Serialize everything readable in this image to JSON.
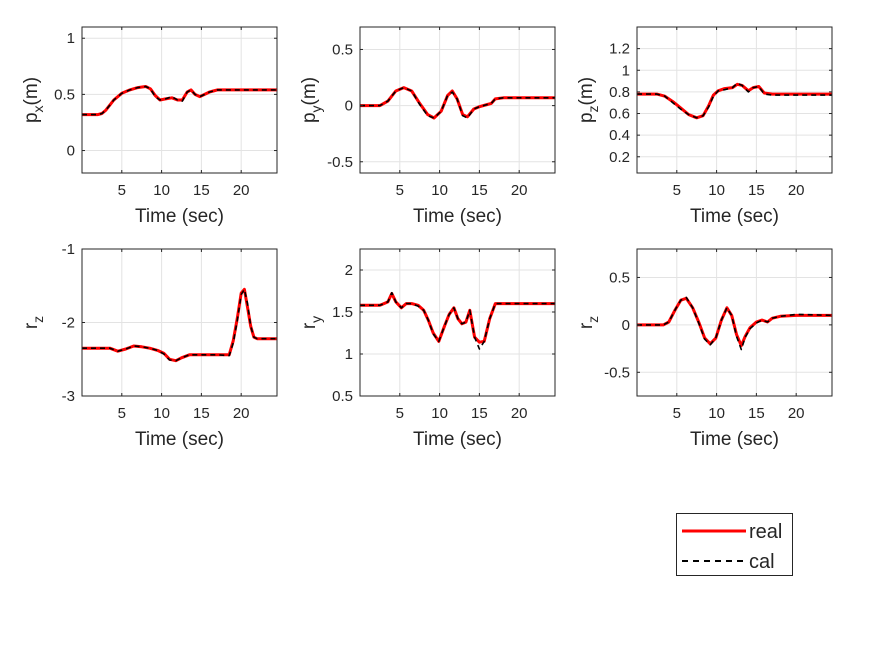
{
  "chart_data": [
    {
      "type": "line",
      "ylabel_base": "p",
      "ylabel_sub": "x",
      "ylabel_suffix": "(m)",
      "xlabel": "Time (sec)",
      "xlim": [
        0,
        24.5
      ],
      "ylim": [
        -0.2,
        1.1
      ],
      "xticks": [
        5,
        10,
        15,
        20
      ],
      "yticks": [
        0,
        0.5,
        1
      ],
      "ytick_labels": [
        "0",
        "0.5",
        "1"
      ],
      "series": [
        {
          "name": "real",
          "x": [
            0,
            2,
            2.5,
            3,
            4,
            5,
            6,
            7,
            8,
            8.6,
            9.2,
            9.8,
            10.5,
            11.3,
            12,
            12.6,
            13.2,
            13.7,
            14.2,
            14.8,
            15.4,
            16,
            16.5,
            17,
            20,
            24.5
          ],
          "y": [
            0.32,
            0.32,
            0.33,
            0.36,
            0.45,
            0.51,
            0.54,
            0.56,
            0.57,
            0.55,
            0.49,
            0.45,
            0.46,
            0.47,
            0.45,
            0.45,
            0.52,
            0.54,
            0.5,
            0.48,
            0.5,
            0.52,
            0.53,
            0.54,
            0.54,
            0.54
          ]
        },
        {
          "name": "cal",
          "x": [
            0,
            2,
            2.5,
            3,
            4,
            5,
            6,
            7,
            8,
            8.6,
            9.2,
            9.8,
            10.5,
            11.3,
            12,
            12.6,
            13.2,
            13.7,
            14.2,
            14.8,
            15.4,
            16,
            16.5,
            17,
            20,
            24.5
          ],
          "y": [
            0.32,
            0.32,
            0.33,
            0.36,
            0.45,
            0.51,
            0.54,
            0.56,
            0.57,
            0.55,
            0.48,
            0.45,
            0.46,
            0.48,
            0.45,
            0.44,
            0.52,
            0.54,
            0.5,
            0.48,
            0.5,
            0.52,
            0.53,
            0.54,
            0.54,
            0.54
          ]
        }
      ]
    },
    {
      "type": "line",
      "ylabel_base": "p",
      "ylabel_sub": "y",
      "ylabel_suffix": "(m)",
      "xlabel": "Time (sec)",
      "xlim": [
        0,
        24.5
      ],
      "ylim": [
        -0.6,
        0.7
      ],
      "xticks": [
        5,
        10,
        15,
        20
      ],
      "yticks": [
        -0.5,
        0,
        0.5
      ],
      "ytick_labels": [
        "-0.5",
        "0",
        "0.5"
      ],
      "series": [
        {
          "name": "real",
          "x": [
            0,
            2.5,
            3.5,
            4.5,
            5.5,
            6.5,
            7.5,
            8.5,
            9.3,
            10.2,
            11,
            11.6,
            12.2,
            12.9,
            13.5,
            14.3,
            15,
            16,
            16.5,
            17,
            18,
            24.5
          ],
          "y": [
            0,
            0,
            0.04,
            0.13,
            0.16,
            0.13,
            0.02,
            -0.08,
            -0.11,
            -0.05,
            0.09,
            0.13,
            0.06,
            -0.08,
            -0.1,
            -0.03,
            -0.01,
            0.01,
            0.02,
            0.06,
            0.07,
            0.07
          ]
        },
        {
          "name": "cal",
          "x": [
            0,
            2.5,
            3.5,
            4.5,
            5.5,
            6.5,
            7.5,
            8.5,
            9.3,
            10.2,
            11,
            11.6,
            12.2,
            12.9,
            13.5,
            14.3,
            15,
            16,
            16.5,
            17,
            18,
            24.5
          ],
          "y": [
            0,
            0,
            0.04,
            0.13,
            0.16,
            0.13,
            0.01,
            -0.09,
            -0.11,
            -0.05,
            0.09,
            0.12,
            0.06,
            -0.09,
            -0.11,
            -0.03,
            -0.01,
            0.01,
            0.02,
            0.06,
            0.07,
            0.07
          ]
        }
      ]
    },
    {
      "type": "line",
      "ylabel_base": "p",
      "ylabel_sub": "z",
      "ylabel_suffix": "(m)",
      "xlabel": "Time (sec)",
      "xlim": [
        0,
        24.5
      ],
      "ylim": [
        0.05,
        1.4
      ],
      "xticks": [
        5,
        10,
        15,
        20
      ],
      "yticks": [
        0.2,
        0.4,
        0.6,
        0.8,
        1,
        1.2
      ],
      "ytick_labels": [
        "0.2",
        "0.4",
        "0.6",
        "0.8",
        "1",
        "1.2"
      ],
      "series": [
        {
          "name": "real",
          "x": [
            0,
            2.5,
            3.5,
            4.5,
            5.5,
            6.5,
            7.5,
            8.3,
            9,
            9.6,
            10.2,
            11,
            12,
            12.6,
            13.2,
            14,
            14.6,
            15.3,
            16,
            17,
            24.5
          ],
          "y": [
            0.78,
            0.78,
            0.76,
            0.71,
            0.65,
            0.59,
            0.56,
            0.58,
            0.67,
            0.77,
            0.81,
            0.83,
            0.84,
            0.87,
            0.86,
            0.81,
            0.84,
            0.85,
            0.79,
            0.78,
            0.78
          ]
        },
        {
          "name": "cal",
          "x": [
            0,
            2.5,
            3.5,
            4.5,
            5.5,
            6.5,
            7.5,
            8.3,
            9,
            9.6,
            10.2,
            11,
            12,
            12.6,
            13.2,
            14,
            14.6,
            15.3,
            16,
            17,
            24.5
          ],
          "y": [
            0.78,
            0.78,
            0.76,
            0.7,
            0.64,
            0.59,
            0.56,
            0.58,
            0.66,
            0.76,
            0.81,
            0.82,
            0.84,
            0.88,
            0.86,
            0.8,
            0.84,
            0.85,
            0.78,
            0.77,
            0.77
          ]
        }
      ]
    },
    {
      "type": "line",
      "ylabel_base": "r",
      "ylabel_sub": "z",
      "ylabel_suffix": "",
      "xlabel": "Time (sec)",
      "xlim": [
        0,
        24.5
      ],
      "ylim": [
        -3,
        -1
      ],
      "xticks": [
        5,
        10,
        15,
        20
      ],
      "yticks": [
        -3,
        -2,
        -1
      ],
      "ytick_labels": [
        "-3",
        "-2",
        "-1"
      ],
      "series": [
        {
          "name": "real",
          "x": [
            0,
            2.5,
            3.5,
            4.5,
            5.5,
            6.5,
            7.5,
            8.5,
            9.5,
            10.3,
            11,
            11.8,
            12.5,
            13.5,
            15,
            17,
            18.5,
            19,
            19.5,
            20,
            20.4,
            20.8,
            21.2,
            21.6,
            22,
            24.5
          ],
          "y": [
            -2.35,
            -2.35,
            -2.35,
            -2.39,
            -2.36,
            -2.32,
            -2.33,
            -2.35,
            -2.38,
            -2.42,
            -2.5,
            -2.52,
            -2.48,
            -2.44,
            -2.44,
            -2.44,
            -2.44,
            -2.25,
            -1.95,
            -1.6,
            -1.55,
            -1.8,
            -2.05,
            -2.2,
            -2.22,
            -2.22
          ]
        },
        {
          "name": "cal",
          "x": [
            0,
            2.5,
            3.5,
            4.5,
            5.5,
            6.5,
            7.5,
            8.5,
            9.5,
            10.3,
            11,
            11.8,
            12.5,
            13.5,
            15,
            17,
            18.5,
            19,
            19.5,
            20,
            20.4,
            20.8,
            21.2,
            21.6,
            22,
            24.5
          ],
          "y": [
            -2.35,
            -2.35,
            -2.35,
            -2.39,
            -2.36,
            -2.32,
            -2.33,
            -2.35,
            -2.38,
            -2.43,
            -2.51,
            -2.52,
            -2.48,
            -2.44,
            -2.44,
            -2.44,
            -2.45,
            -2.28,
            -1.98,
            -1.62,
            -1.55,
            -1.75,
            -2.05,
            -2.2,
            -2.22,
            -2.22
          ]
        }
      ]
    },
    {
      "type": "line",
      "ylabel_base": "r",
      "ylabel_sub": "y",
      "ylabel_suffix": "",
      "xlabel": "Time (sec)",
      "xlim": [
        0,
        24.5
      ],
      "ylim": [
        0.5,
        2.25
      ],
      "xticks": [
        5,
        10,
        15,
        20
      ],
      "yticks": [
        0.5,
        1,
        1.5,
        2
      ],
      "ytick_labels": [
        "0.5",
        "1",
        "1.5",
        "2"
      ],
      "series": [
        {
          "name": "real",
          "x": [
            0,
            2.5,
            3.5,
            4,
            4.5,
            5.2,
            5.8,
            6.5,
            7.3,
            8,
            8.6,
            9.2,
            9.9,
            10.6,
            11.2,
            11.8,
            12.3,
            12.8,
            13.3,
            13.8,
            14.4,
            15,
            15.6,
            16.3,
            17,
            18,
            24.5
          ],
          "y": [
            1.58,
            1.58,
            1.62,
            1.72,
            1.62,
            1.55,
            1.6,
            1.6,
            1.58,
            1.52,
            1.4,
            1.25,
            1.15,
            1.33,
            1.47,
            1.55,
            1.42,
            1.36,
            1.38,
            1.52,
            1.2,
            1.14,
            1.15,
            1.42,
            1.6,
            1.6,
            1.6
          ]
        },
        {
          "name": "cal",
          "x": [
            0,
            2.5,
            3.5,
            4,
            4.5,
            5.2,
            5.8,
            6.5,
            7.3,
            8,
            8.6,
            9.2,
            9.9,
            10.6,
            11.2,
            11.8,
            12.3,
            12.8,
            13.3,
            13.8,
            14.4,
            15,
            15.6,
            16.3,
            17,
            18,
            24.5
          ],
          "y": [
            1.58,
            1.58,
            1.62,
            1.73,
            1.62,
            1.55,
            1.6,
            1.6,
            1.57,
            1.52,
            1.4,
            1.24,
            1.15,
            1.33,
            1.47,
            1.55,
            1.42,
            1.36,
            1.38,
            1.52,
            1.2,
            1.06,
            1.15,
            1.42,
            1.6,
            1.6,
            1.6
          ]
        }
      ]
    },
    {
      "type": "line",
      "ylabel_base": "r",
      "ylabel_sub": "z",
      "ylabel_suffix": "",
      "xlabel": "Time (sec)",
      "xlim": [
        0,
        24.5
      ],
      "ylim": [
        -0.75,
        0.8
      ],
      "xticks": [
        5,
        10,
        15,
        20
      ],
      "yticks": [
        -0.5,
        0,
        0.5
      ],
      "ytick_labels": [
        "-0.5",
        "0",
        "0.5"
      ],
      "series": [
        {
          "name": "real",
          "x": [
            0,
            2.5,
            3.3,
            4,
            4.8,
            5.5,
            6.2,
            7,
            7.8,
            8.5,
            9.2,
            9.9,
            10.6,
            11.3,
            11.9,
            12.5,
            13.1,
            13.6,
            14.2,
            15,
            15.7,
            16.4,
            17,
            18,
            20,
            24.5
          ],
          "y": [
            0,
            0,
            0,
            0.03,
            0.16,
            0.26,
            0.28,
            0.18,
            0.02,
            -0.14,
            -0.2,
            -0.14,
            0.05,
            0.18,
            0.1,
            -0.1,
            -0.22,
            -0.12,
            -0.03,
            0.03,
            0.05,
            0.03,
            0.07,
            0.09,
            0.1,
            0.1
          ]
        },
        {
          "name": "cal",
          "x": [
            0,
            2.5,
            3.3,
            4,
            4.8,
            5.5,
            6.2,
            7,
            7.8,
            8.5,
            9.2,
            9.9,
            10.6,
            11.3,
            11.9,
            12.5,
            13.1,
            13.6,
            14.2,
            15,
            15.7,
            16.4,
            17,
            18,
            20,
            24.5
          ],
          "y": [
            0,
            0,
            0,
            0.03,
            0.16,
            0.26,
            0.29,
            0.18,
            0.01,
            -0.15,
            -0.21,
            -0.14,
            0.05,
            0.18,
            0.1,
            -0.12,
            -0.26,
            -0.13,
            -0.04,
            0.02,
            0.05,
            0.03,
            0.07,
            0.09,
            0.11,
            0.1
          ]
        }
      ]
    }
  ],
  "legend": {
    "entries": [
      "real",
      "cal"
    ],
    "colors": [
      "#ff0000",
      "#000000"
    ],
    "placement": "bottom-right"
  }
}
